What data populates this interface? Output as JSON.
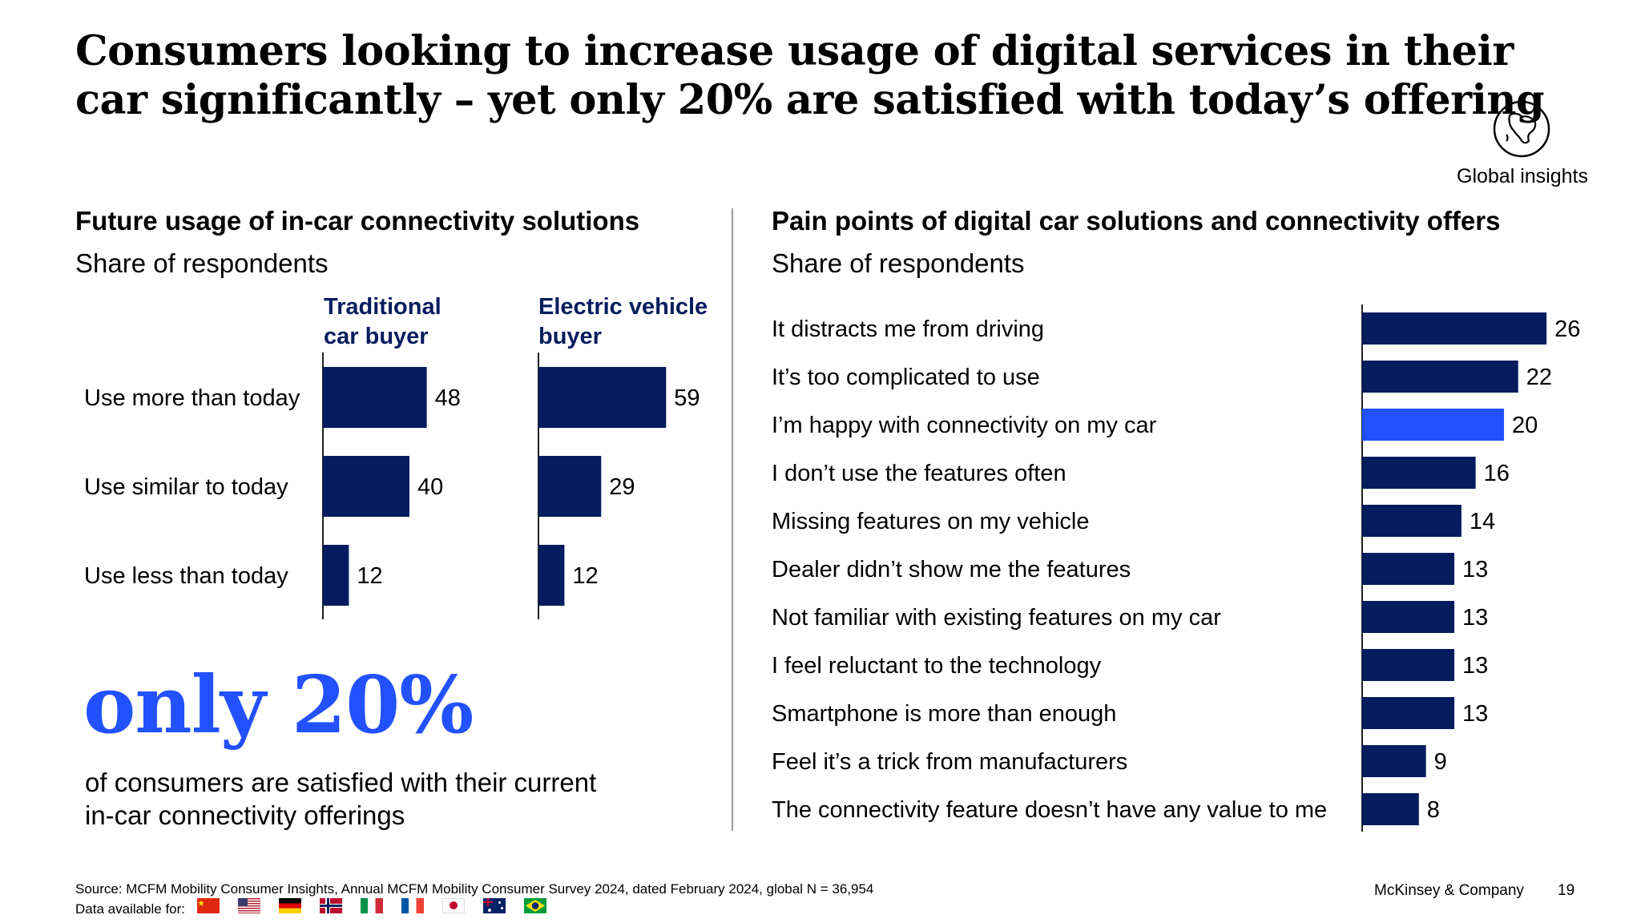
{
  "title": "Consumers looking to increase usage of digital services in their car significantly – yet only 20% are satisfied with today’s offering",
  "badge": {
    "icon": "globe-icon",
    "label": "Global insights"
  },
  "left_section": {
    "title": "Future usage of in-car connectivity solutions",
    "subtitle": "Share of respondents",
    "col1_line1": "Traditional",
    "col1_line2": "car buyer",
    "col2_line1": "Electric vehicle",
    "col2_line2": "buyer"
  },
  "right_section": {
    "title": "Pain points of digital car solutions and connectivity offers",
    "subtitle": "Share of respondents"
  },
  "highlight": {
    "number": "only 20%",
    "line1": "of consumers are satisfied with their current",
    "line2": "in-car connectivity offerings"
  },
  "footer": {
    "source": "Source: MCFM Mobility Consumer Insights, Annual MCFM Mobility Consumer Survey 2024, dated February 2024, global N = 36,954",
    "data_available": "Data available for:",
    "flags": [
      "china-flag-icon",
      "usa-flag-icon",
      "germany-flag-icon",
      "norway-flag-icon",
      "italy-flag-icon",
      "france-flag-icon",
      "japan-flag-icon",
      "australia-flag-icon",
      "brazil-flag-icon"
    ],
    "brand": "McKinsey & Company",
    "page": "19"
  },
  "colors": {
    "navy": "#051c5e",
    "accent": "#2251ff",
    "divider": "#9a9a9a"
  },
  "chart_data": [
    {
      "type": "bar",
      "orientation": "horizontal",
      "title": "Future usage of in-car connectivity solutions",
      "subtitle": "Share of respondents",
      "categories": [
        "Use more than today",
        "Use similar to today",
        "Use less than today"
      ],
      "series": [
        {
          "name": "Traditional car buyer",
          "values": [
            48,
            40,
            12
          ]
        },
        {
          "name": "Electric vehicle buyer",
          "values": [
            59,
            29,
            12
          ]
        }
      ]
    },
    {
      "type": "bar",
      "orientation": "horizontal",
      "title": "Pain points of digital car solutions and connectivity offers",
      "subtitle": "Share of respondents",
      "categories": [
        "It distracts me from driving",
        "It’s too complicated to use",
        "I’m happy with connectivity on my car",
        "I don’t use the features often",
        "Missing features on my vehicle",
        "Dealer didn’t show me the features",
        "Not familiar with existing features on my car",
        "I feel reluctant to the technology",
        "Smartphone is more than enough",
        "Feel it’s a trick from manufacturers",
        "The connectivity feature doesn’t have any value to me"
      ],
      "values": [
        26,
        22,
        20,
        16,
        14,
        13,
        13,
        13,
        13,
        9,
        8
      ],
      "highlight_category": "I’m happy with connectivity on my car"
    }
  ]
}
